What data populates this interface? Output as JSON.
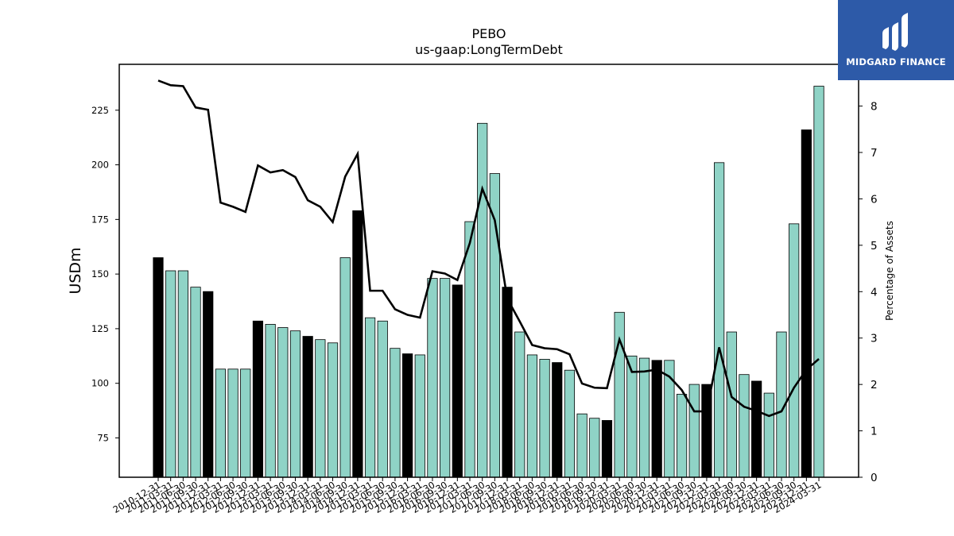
{
  "chart_data": {
    "type": "bar",
    "title": "PEBO",
    "subtitle": "us-gaap:LongTermDebt",
    "ylabel": "USDm",
    "y2label": "Percentage of Assets",
    "ylim": [
      57,
      246
    ],
    "y2lim": [
      0,
      8.9
    ],
    "yticks": [
      75,
      100,
      125,
      150,
      175,
      200,
      225
    ],
    "y2ticks": [
      0,
      1,
      2,
      3,
      4,
      5,
      6,
      7,
      8
    ],
    "categories": [
      "2010-12-31",
      "2011-03-31",
      "2011-06-30",
      "2011-09-30",
      "2011-12-31",
      "2012-03-31",
      "2012-06-30",
      "2012-09-30",
      "2012-12-31",
      "2013-03-31",
      "2013-06-30",
      "2013-09-30",
      "2013-12-31",
      "2014-03-31",
      "2014-06-30",
      "2014-09-30",
      "2014-12-31",
      "2015-03-31",
      "2015-06-30",
      "2015-09-30",
      "2015-12-31",
      "2016-03-31",
      "2016-06-30",
      "2016-09-30",
      "2016-12-31",
      "2017-03-31",
      "2017-06-30",
      "2017-09-30",
      "2017-12-31",
      "2018-03-31",
      "2018-06-30",
      "2018-09-30",
      "2018-12-31",
      "2019-03-31",
      "2019-06-30",
      "2019-09-30",
      "2019-12-31",
      "2020-03-31",
      "2020-06-30",
      "2020-09-30",
      "2020-12-31",
      "2021-03-31",
      "2021-06-30",
      "2021-09-30",
      "2021-12-31",
      "2022-03-31",
      "2022-06-30",
      "2022-09-30",
      "2022-12-31",
      "2023-03-31",
      "2023-06-30",
      "2023-09-30",
      "2023-12-31",
      "2024-03-31"
    ],
    "series": [
      {
        "type": "bar",
        "values": [
          157.5,
          151.5,
          151.5,
          144,
          142,
          106.5,
          106.5,
          106.5,
          128.5,
          127,
          125.5,
          124,
          121.5,
          120,
          118.5,
          157.5,
          179,
          130,
          128.5,
          116,
          113.5,
          113,
          148,
          148,
          145,
          174,
          219,
          196,
          144,
          123.5,
          113,
          111,
          109.5,
          106,
          86,
          84,
          83,
          132.5,
          112.5,
          111.5,
          110.5,
          110.5,
          95,
          99.5,
          99.5,
          201,
          123.5,
          104,
          101,
          95.5,
          123.5,
          173,
          216,
          236
        ]
      },
      {
        "type": "line",
        "axis": "right",
        "values": [
          8.55,
          8.45,
          8.43,
          7.97,
          7.92,
          5.92,
          5.83,
          5.72,
          6.72,
          6.57,
          6.62,
          6.47,
          5.97,
          5.83,
          5.5,
          6.48,
          6.97,
          4.02,
          4.02,
          3.62,
          3.5,
          3.44,
          4.44,
          4.39,
          4.25,
          5.05,
          6.22,
          5.54,
          3.85,
          3.36,
          2.85,
          2.78,
          2.76,
          2.65,
          2.02,
          1.93,
          1.92,
          2.97,
          2.27,
          2.28,
          2.32,
          2.17,
          1.88,
          1.42,
          1.42,
          2.8,
          1.73,
          1.52,
          1.43,
          1.32,
          1.42,
          1.93,
          2.32,
          2.55
        ]
      }
    ],
    "year_end_highlight": "-12-31",
    "colors": {
      "bar": "#8fd3c6",
      "bar_highlight": "#000000",
      "bar_edge": "#000000",
      "line": "#000000"
    }
  },
  "logo": {
    "name": "MIDGARD FINANCE",
    "bg": "#2d5aa8"
  }
}
